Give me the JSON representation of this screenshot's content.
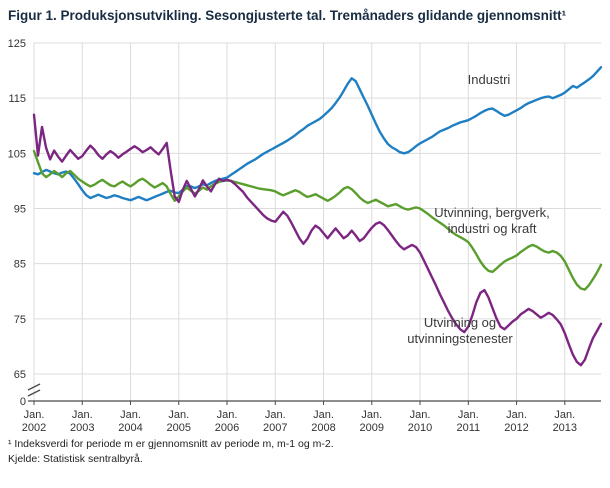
{
  "title": "Figur 1. Produksjonsutvikling. Sesongjusterte tal. Tremånaders glidande gjennomsnitt¹",
  "footnotes": {
    "note1": "¹ Indeksverdi for periode m er gjennomsnitt av periode m, m-1 og m-2.",
    "source": "Kjelde: Statistisk sentralbyrå."
  },
  "chart_data": {
    "type": "line",
    "title": "Figur 1. Produksjonsutvikling. Sesongjusterte tal. Tremånaders glidande gjennomsnitt",
    "xlabel": "",
    "ylabel": "",
    "grid": true,
    "legend_position": "inline-annotations",
    "x_axis": {
      "month_label": "Jan.",
      "years": [
        "2002",
        "2003",
        "2004",
        "2005",
        "2006",
        "2007",
        "2008",
        "2009",
        "2010",
        "2011",
        "2012",
        "2013"
      ],
      "frequency": "monthly",
      "range": "Jan 2002 - Oct 2013"
    },
    "y_axis": {
      "upper_ticks": [
        65,
        75,
        85,
        95,
        105,
        115,
        125
      ],
      "upper_min": 65,
      "upper_max": 125,
      "zero_label": "0",
      "axis_break": true
    },
    "series": [
      {
        "name": "Industri",
        "label_lines": [
          "Industri"
        ],
        "color": "#1f7fc2",
        "values": [
          101.4,
          101.2,
          101.6,
          102.0,
          101.7,
          101.4,
          101.2,
          101.5,
          101.7,
          101.3,
          100.4,
          99.4,
          98.3,
          97.4,
          96.9,
          97.2,
          97.5,
          97.2,
          96.9,
          97.1,
          97.4,
          97.2,
          96.9,
          96.7,
          96.5,
          96.8,
          97.1,
          96.8,
          96.5,
          96.8,
          97.1,
          97.4,
          97.7,
          98.0,
          98.2,
          97.9,
          97.8,
          98.4,
          99.1,
          99.0,
          98.7,
          99.0,
          99.4,
          99.2,
          99.6,
          100.0,
          100.2,
          100.4,
          100.6,
          101.1,
          101.6,
          102.1,
          102.6,
          103.1,
          103.5,
          103.9,
          104.4,
          104.9,
          105.3,
          105.7,
          106.1,
          106.5,
          106.9,
          107.3,
          107.8,
          108.3,
          108.9,
          109.4,
          110.0,
          110.4,
          110.8,
          111.2,
          111.8,
          112.5,
          113.2,
          114.1,
          115.1,
          116.3,
          117.6,
          118.6,
          118.1,
          116.6,
          115.1,
          113.6,
          112.0,
          110.4,
          108.9,
          107.7,
          106.7,
          106.1,
          105.7,
          105.2,
          105.0,
          105.2,
          105.7,
          106.3,
          106.8,
          107.2,
          107.6,
          108.0,
          108.5,
          109.0,
          109.3,
          109.6,
          110.0,
          110.3,
          110.6,
          110.8,
          111.0,
          111.4,
          111.8,
          112.3,
          112.7,
          113.0,
          113.1,
          112.7,
          112.2,
          111.8,
          112.0,
          112.4,
          112.8,
          113.2,
          113.7,
          114.1,
          114.4,
          114.7,
          115.0,
          115.2,
          115.3,
          115.0,
          115.3,
          115.6,
          116.0,
          116.6,
          117.2,
          116.9,
          117.4,
          117.9,
          118.4,
          119.0,
          119.8,
          120.6
        ]
      },
      {
        "name": "Utvinning, bergverk, industri og kraft",
        "label_lines": [
          "Utvinning, bergverk,",
          "industri og kraft"
        ],
        "color": "#5a9e2e",
        "values": [
          105.4,
          103.4,
          101.4,
          100.7,
          101.2,
          101.8,
          101.3,
          100.7,
          101.4,
          101.8,
          101.1,
          100.4,
          99.9,
          99.4,
          99.0,
          99.3,
          99.8,
          100.2,
          99.7,
          99.2,
          99.0,
          99.5,
          99.9,
          99.4,
          99.0,
          99.5,
          100.1,
          100.4,
          99.9,
          99.3,
          98.8,
          99.2,
          99.6,
          99.0,
          97.6,
          96.4,
          97.2,
          98.1,
          98.8,
          98.2,
          97.7,
          98.2,
          98.8,
          98.4,
          99.0,
          99.5,
          99.8,
          100.0,
          100.1,
          100.0,
          99.8,
          99.6,
          99.4,
          99.2,
          99.0,
          98.8,
          98.6,
          98.5,
          98.4,
          98.3,
          98.1,
          97.7,
          97.4,
          97.7,
          98.0,
          98.3,
          98.0,
          97.5,
          97.1,
          97.3,
          97.6,
          97.2,
          96.8,
          96.4,
          96.8,
          97.3,
          97.9,
          98.6,
          98.9,
          98.5,
          97.8,
          97.0,
          96.4,
          96.0,
          96.3,
          96.6,
          96.2,
          95.8,
          95.4,
          95.6,
          95.8,
          95.4,
          95.0,
          94.8,
          95.0,
          95.2,
          95.0,
          94.5,
          94.0,
          93.4,
          92.9,
          92.4,
          91.9,
          91.3,
          90.7,
          90.2,
          89.8,
          89.4,
          88.9,
          87.9,
          86.7,
          85.4,
          84.4,
          83.7,
          83.5,
          84.1,
          84.8,
          85.4,
          85.8,
          86.1,
          86.5,
          87.1,
          87.6,
          88.1,
          88.4,
          88.1,
          87.6,
          87.2,
          87.0,
          87.3,
          87.0,
          86.4,
          85.4,
          83.9,
          82.4,
          81.2,
          80.5,
          80.3,
          81.1,
          82.2,
          83.4,
          84.8
        ]
      },
      {
        "name": "Utvinning og utvinningstenester",
        "label_lines": [
          "Utvinning og",
          "utvinningstenester"
        ],
        "color": "#7c2682",
        "values": [
          112.0,
          104.6,
          109.8,
          106.0,
          103.9,
          105.5,
          104.4,
          103.5,
          104.6,
          105.6,
          104.8,
          104.0,
          104.5,
          105.5,
          106.4,
          105.7,
          104.7,
          104.0,
          104.8,
          105.4,
          104.9,
          104.2,
          104.8,
          105.3,
          105.8,
          106.3,
          105.8,
          105.2,
          105.6,
          106.1,
          105.4,
          104.8,
          105.8,
          106.9,
          101.8,
          97.2,
          96.2,
          98.4,
          100.0,
          98.6,
          97.2,
          98.5,
          100.1,
          99.0,
          98.1,
          99.4,
          100.4,
          100.0,
          100.2,
          100.0,
          99.4,
          98.7,
          98.0,
          97.0,
          96.2,
          95.4,
          94.6,
          93.8,
          93.2,
          92.8,
          92.6,
          93.5,
          94.4,
          93.7,
          92.4,
          91.0,
          89.6,
          88.6,
          89.5,
          91.0,
          91.9,
          91.4,
          90.5,
          89.6,
          90.5,
          91.4,
          90.5,
          89.6,
          90.1,
          91.0,
          90.1,
          89.1,
          89.6,
          90.6,
          91.5,
          92.2,
          92.5,
          92.0,
          91.1,
          90.1,
          89.1,
          88.2,
          87.6,
          88.0,
          88.4,
          88.0,
          87.0,
          85.5,
          84.0,
          82.5,
          81.0,
          79.4,
          77.9,
          76.4,
          75.1,
          74.0,
          73.1,
          72.6,
          73.6,
          75.6,
          78.0,
          79.7,
          80.2,
          78.9,
          77.0,
          75.1,
          73.6,
          73.1,
          73.8,
          74.5,
          75.0,
          75.8,
          76.3,
          76.8,
          76.4,
          75.8,
          75.2,
          75.6,
          76.1,
          75.7,
          74.9,
          74.0,
          72.4,
          70.4,
          68.5,
          67.2,
          66.6,
          67.6,
          69.6,
          71.5,
          72.8,
          74.1
        ]
      }
    ]
  }
}
